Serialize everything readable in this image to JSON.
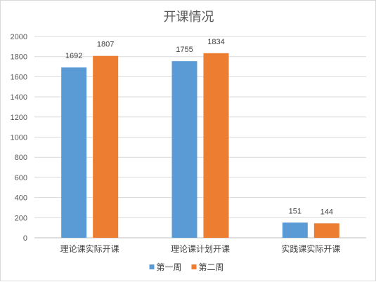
{
  "chart_data": {
    "type": "bar",
    "title": "开课情况",
    "xlabel": "",
    "ylabel": "",
    "ylim": [
      0,
      2000
    ],
    "y_ticks": [
      0,
      200,
      400,
      600,
      800,
      1000,
      1200,
      1400,
      1600,
      1800,
      2000
    ],
    "grid": true,
    "legend_position": "bottom",
    "categories": [
      "理论课实际开课",
      "理论课计划开课",
      "实践课实际开课"
    ],
    "series": [
      {
        "name": "第一周",
        "color": "#5b9bd5",
        "values": [
          1692,
          1755,
          151
        ]
      },
      {
        "name": "第二周",
        "color": "#ed7d31",
        "values": [
          1807,
          1834,
          144
        ]
      }
    ]
  }
}
